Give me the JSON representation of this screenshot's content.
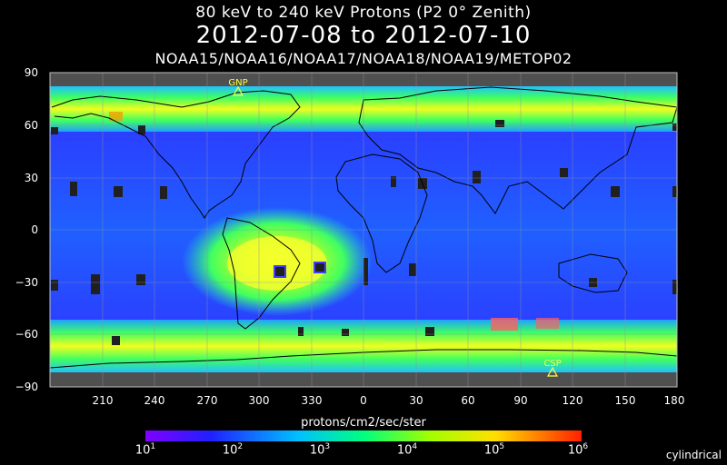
{
  "header": {
    "title": "80 keV to 240 keV  Protons (P2 0° Zenith)",
    "date_range": "2012-07-08 to 2012-07-10",
    "satellites": "NOAA15/NOAA16/NOAA17/NOAA18/NOAA19/METOP02"
  },
  "map": {
    "lat_ticks": [
      "90",
      "60",
      "30",
      "0",
      "−30",
      "−60",
      "−90"
    ],
    "lon_ticks": [
      "210",
      "240",
      "270",
      "300",
      "330",
      "0",
      "30",
      "60",
      "90",
      "120",
      "150",
      "180"
    ],
    "markers": [
      {
        "label": "GNP",
        "lon": 282,
        "lat": 83
      },
      {
        "label": "CSP",
        "lon": 107,
        "lat": -75
      }
    ],
    "projection": "cylindrical"
  },
  "colorbar": {
    "label": "protons/cm2/sec/ster",
    "ticks": [
      {
        "base": "10",
        "exp": "1"
      },
      {
        "base": "10",
        "exp": "2"
      },
      {
        "base": "10",
        "exp": "3"
      },
      {
        "base": "10",
        "exp": "4"
      },
      {
        "base": "10",
        "exp": "5"
      },
      {
        "base": "10",
        "exp": "6"
      }
    ]
  }
}
